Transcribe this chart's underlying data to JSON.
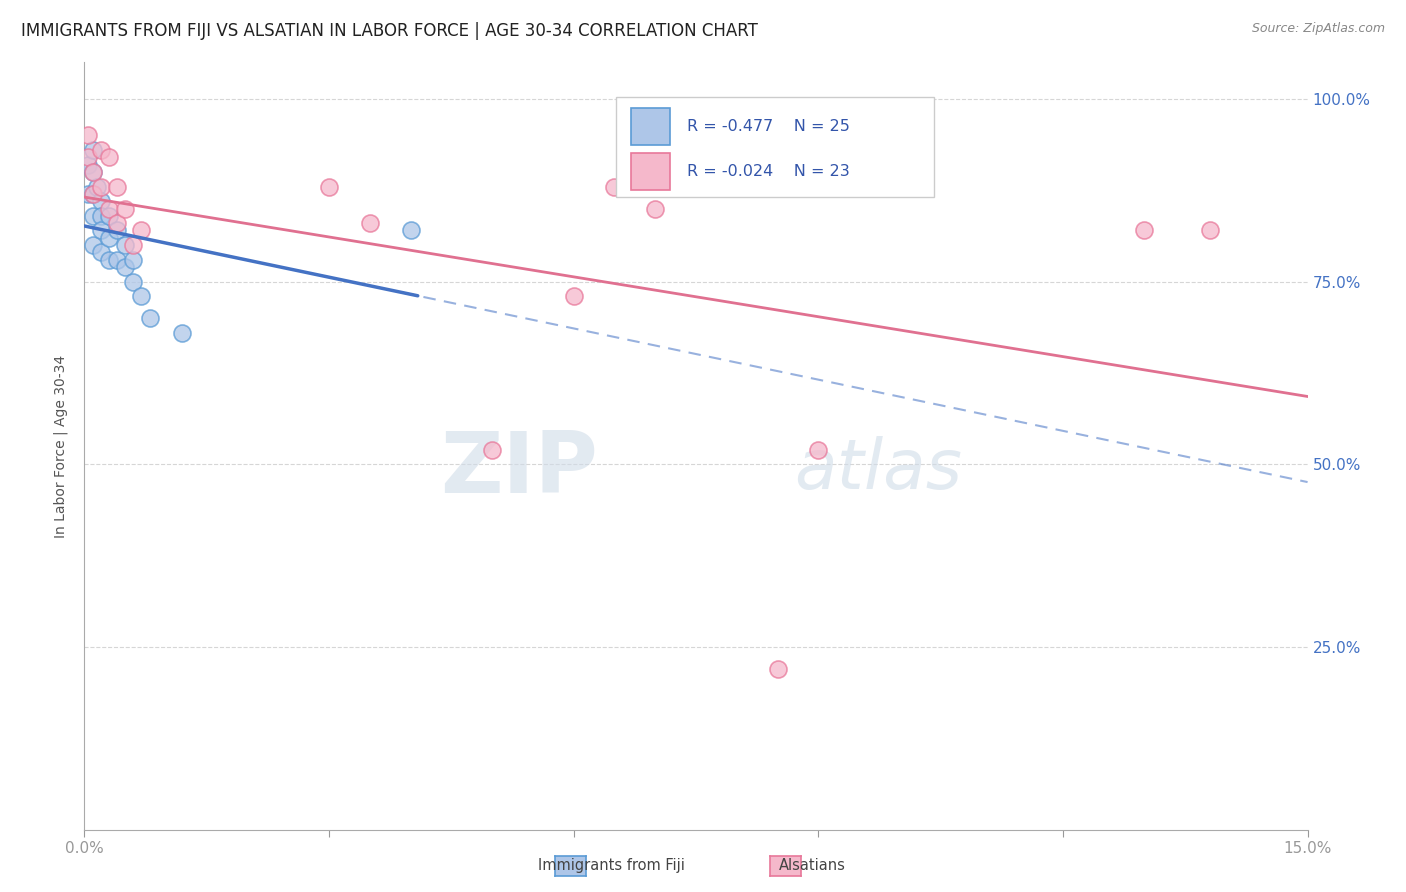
{
  "title": "IMMIGRANTS FROM FIJI VS ALSATIAN IN LABOR FORCE | AGE 30-34 CORRELATION CHART",
  "source": "Source: ZipAtlas.com",
  "ylabel": "In Labor Force | Age 30-34",
  "xmin": 0.0,
  "xmax": 0.15,
  "ymin": 0.0,
  "ymax": 1.05,
  "xticks": [
    0.0,
    0.03,
    0.06,
    0.09,
    0.12,
    0.15
  ],
  "xtick_labels": [
    "0.0%",
    "",
    "",
    "",
    "",
    "15.0%"
  ],
  "ytick_positions": [
    0.25,
    0.5,
    0.75,
    1.0
  ],
  "ytick_labels": [
    "25.0%",
    "50.0%",
    "75.0%",
    "100.0%"
  ],
  "grid_color": "#cccccc",
  "background_color": "#ffffff",
  "fiji_color": "#aec6e8",
  "alsatian_color": "#f5b8cb",
  "fiji_edge_color": "#5b9bd5",
  "alsatian_edge_color": "#e8789a",
  "fiji_line_color": "#4472c4",
  "alsatian_line_color": "#e07090",
  "right_tick_color": "#4472c4",
  "legend_R_fiji": "R = -0.477",
  "legend_N_fiji": "N = 25",
  "legend_R_alsatian": "R = -0.024",
  "legend_N_alsatian": "N = 23",
  "fiji_x": [
    0.0005,
    0.0005,
    0.001,
    0.001,
    0.001,
    0.001,
    0.001,
    0.0015,
    0.002,
    0.002,
    0.002,
    0.002,
    0.003,
    0.003,
    0.003,
    0.004,
    0.004,
    0.005,
    0.005,
    0.006,
    0.006,
    0.007,
    0.008,
    0.012,
    0.04
  ],
  "fiji_y": [
    0.91,
    0.87,
    0.93,
    0.9,
    0.87,
    0.84,
    0.8,
    0.88,
    0.86,
    0.84,
    0.82,
    0.79,
    0.84,
    0.81,
    0.78,
    0.82,
    0.78,
    0.8,
    0.77,
    0.78,
    0.75,
    0.73,
    0.7,
    0.68,
    0.82
  ],
  "alsatian_x": [
    0.0005,
    0.0005,
    0.001,
    0.001,
    0.002,
    0.002,
    0.003,
    0.003,
    0.004,
    0.004,
    0.005,
    0.006,
    0.007,
    0.03,
    0.035,
    0.05,
    0.06,
    0.065,
    0.07,
    0.085,
    0.09,
    0.13,
    0.138
  ],
  "alsatian_y": [
    0.95,
    0.92,
    0.9,
    0.87,
    0.93,
    0.88,
    0.92,
    0.85,
    0.88,
    0.83,
    0.85,
    0.8,
    0.82,
    0.88,
    0.83,
    0.52,
    0.73,
    0.88,
    0.85,
    0.22,
    0.52,
    0.82,
    0.82
  ],
  "watermark_zip": "ZIP",
  "watermark_atlas": "atlas",
  "axis_label_color": "#555555",
  "tick_color": "#999999",
  "title_fontsize": 12,
  "legend_text_color": "#3355aa"
}
